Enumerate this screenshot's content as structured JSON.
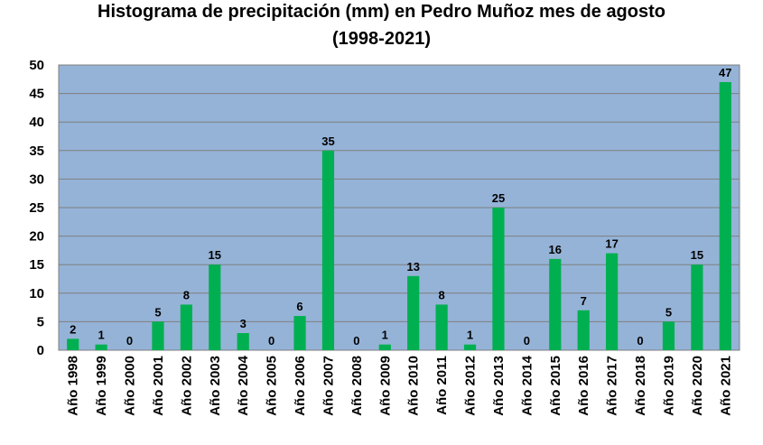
{
  "chart_data": {
    "type": "bar",
    "title_line1": "Histograma de precipitación (mm) en Pedro Muñoz mes de agosto",
    "title_line2": "(1998-2021)",
    "xlabel": "",
    "ylabel": "",
    "ylim": [
      0,
      50
    ],
    "yticks": [
      0,
      5,
      10,
      15,
      20,
      25,
      30,
      35,
      40,
      45,
      50
    ],
    "grid": true,
    "legend": "none",
    "categories": [
      "Año 1998",
      "Año 1999",
      "Año 2000",
      "Año 2001",
      "Año 2002",
      "Año 2003",
      "Año 2004",
      "Año 2005",
      "Año 2006",
      "Año 2007",
      "Año 2008",
      "Año 2009",
      "Año 2010",
      "Año 2011",
      "Año 2012",
      "Año 2013",
      "Año 2014",
      "Año 2015",
      "Año 2016",
      "Año 2017",
      "Año 2018",
      "Año 2019",
      "Año 2020",
      "Año 2021"
    ],
    "values": [
      2,
      1,
      0,
      5,
      8,
      15,
      3,
      0,
      6,
      35,
      0,
      1,
      13,
      8,
      1,
      25,
      0,
      16,
      7,
      17,
      0,
      5,
      15,
      47
    ],
    "colors": {
      "plot_background": "#95b3d7",
      "bar": "#00b050",
      "gridline": "#7f7f7f",
      "axis": "#7f7f7f"
    }
  }
}
